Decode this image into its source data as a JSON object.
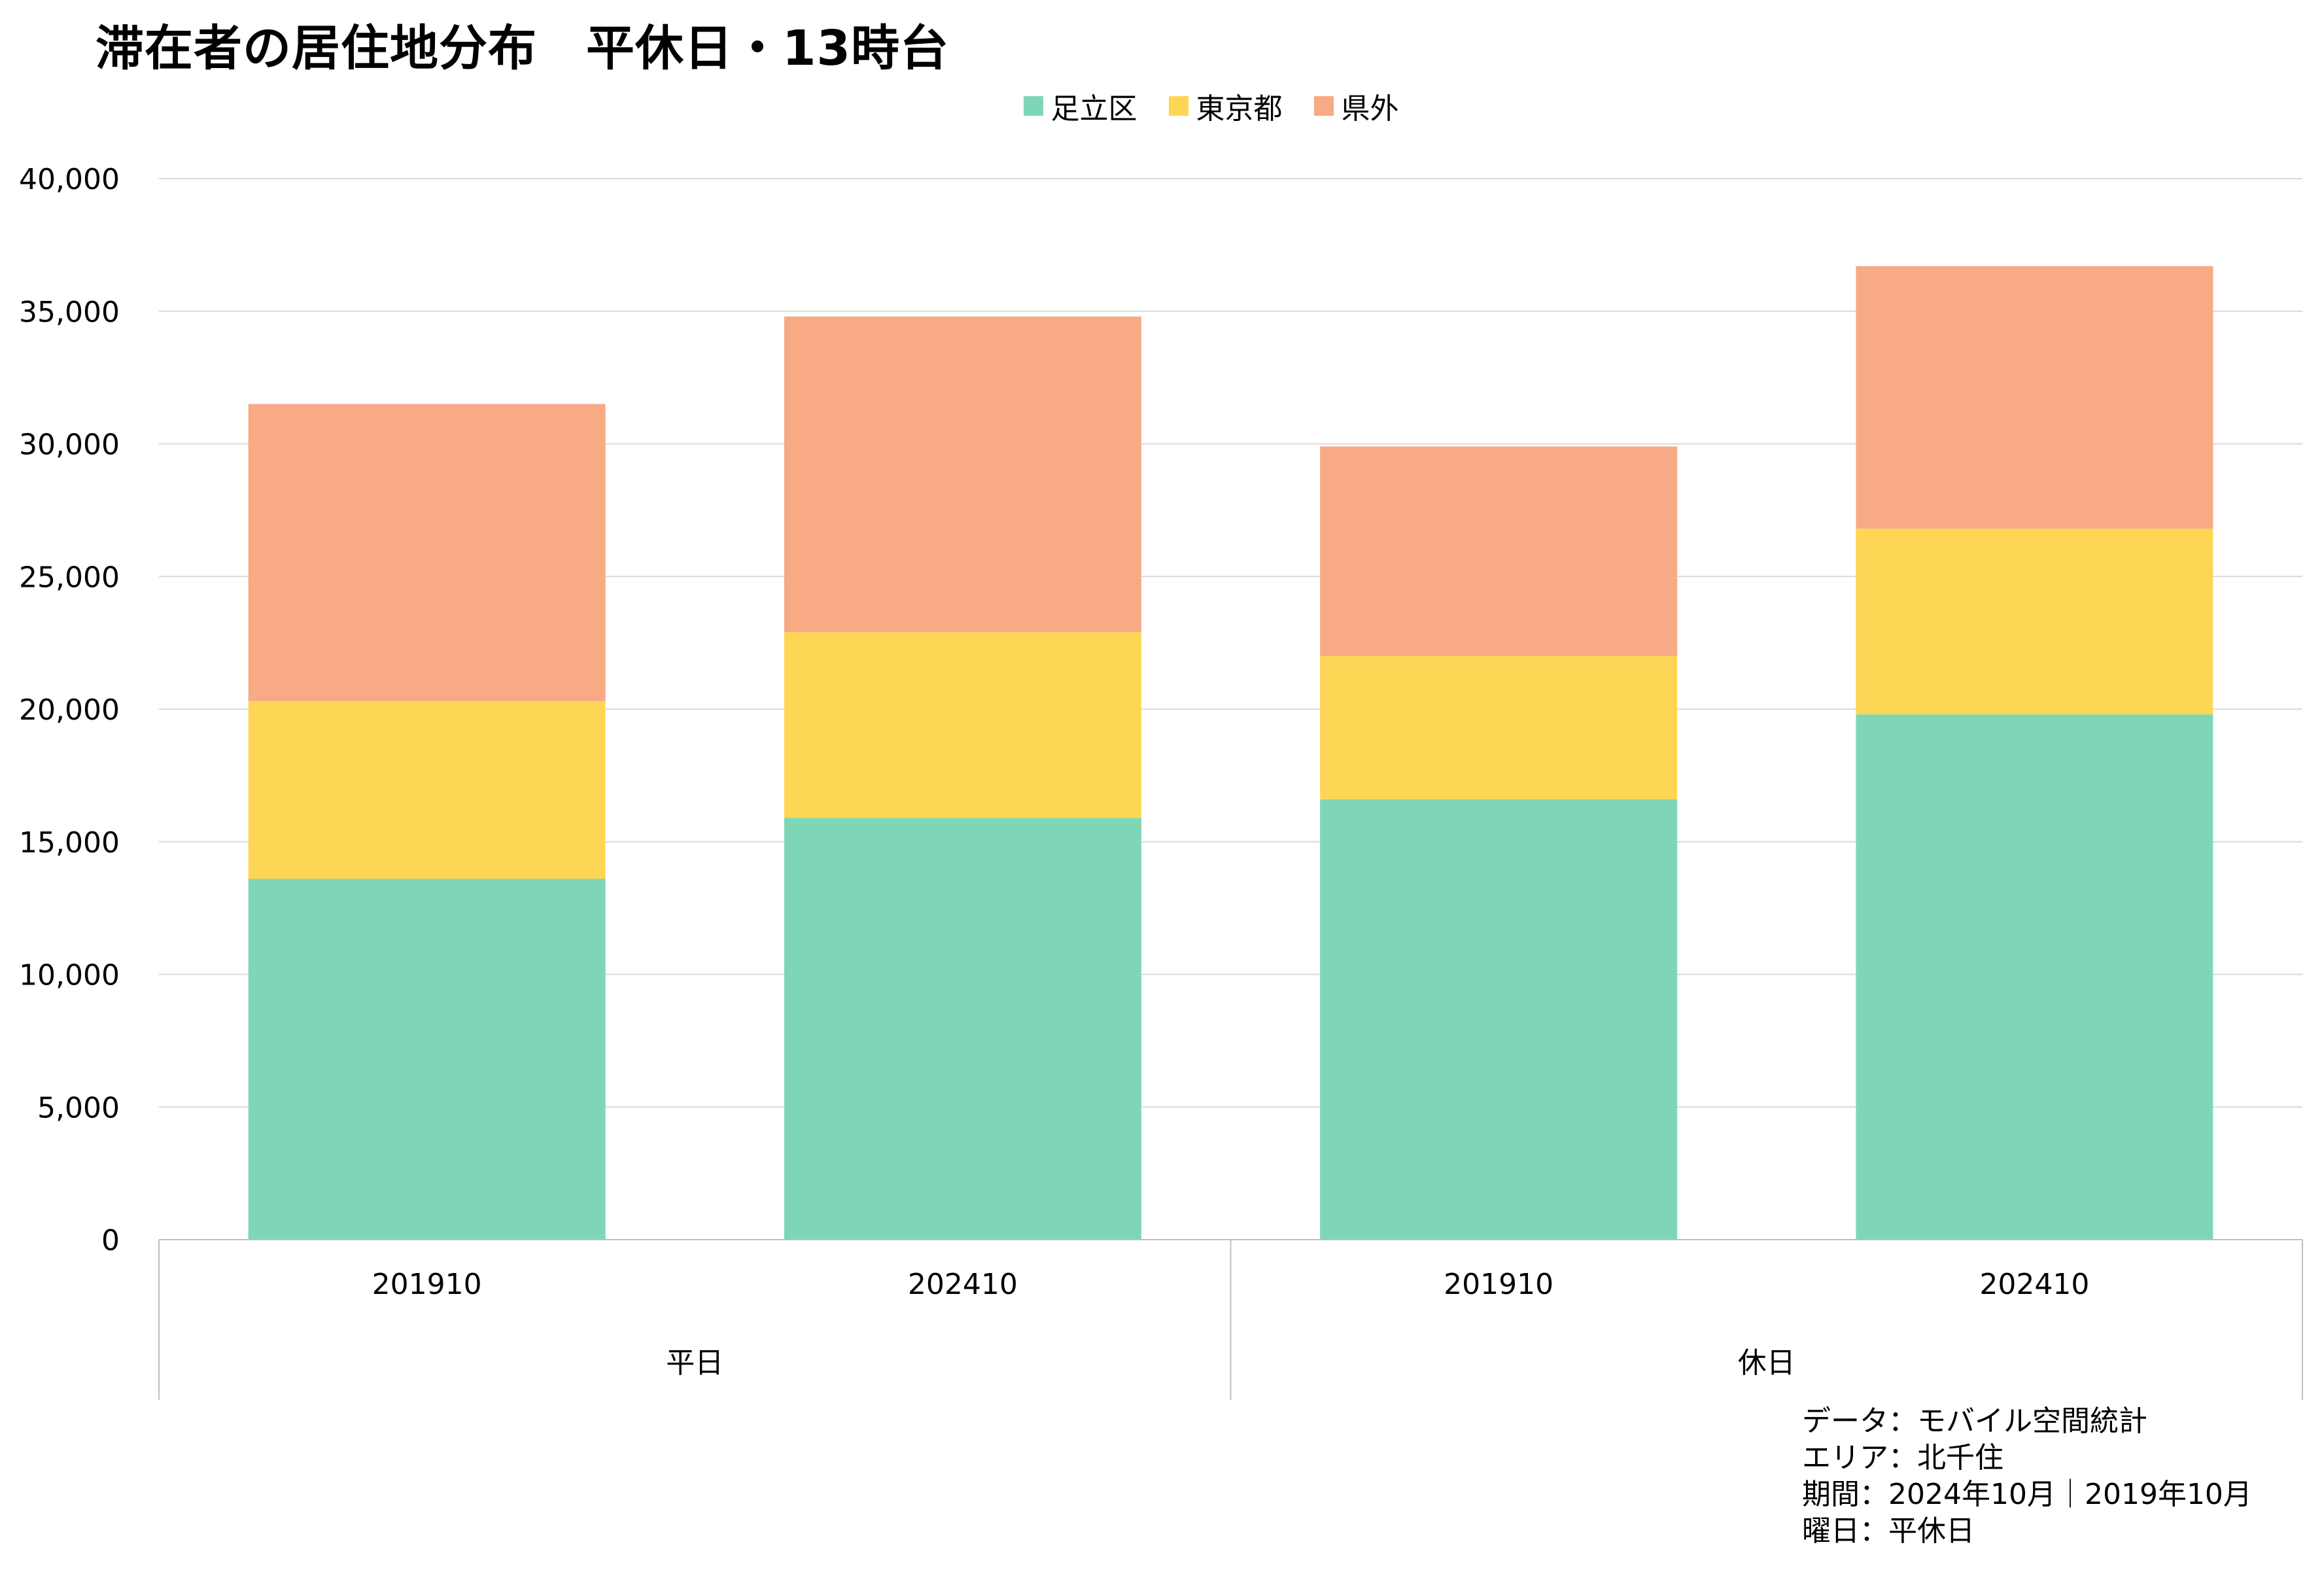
{
  "chart_data": {
    "type": "bar",
    "stacked": true,
    "title": "滞在者の居住地分布　平休日・13時台",
    "categories": [
      "201910",
      "202410",
      "201910",
      "202410"
    ],
    "groups": [
      {
        "label": "平日",
        "categories": [
          "201910",
          "202410"
        ]
      },
      {
        "label": "休日",
        "categories": [
          "201910",
          "202410"
        ]
      }
    ],
    "series": [
      {
        "name": "足立区",
        "color": "#7fd6b7",
        "values": [
          13600,
          15900,
          16600,
          19800
        ]
      },
      {
        "name": "東京都",
        "color": "#fdd655",
        "values": [
          6700,
          7000,
          5400,
          7000
        ]
      },
      {
        "name": "県外",
        "color": "#f7aa84",
        "values": [
          11200,
          11900,
          7900,
          9900
        ]
      }
    ],
    "ylim": [
      0,
      40000
    ],
    "yticks": [
      "0",
      "5,000",
      "10,000",
      "15,000",
      "20,000",
      "25,000",
      "30,000",
      "35,000",
      "40,000"
    ],
    "ytick_values": [
      0,
      5000,
      10000,
      15000,
      20000,
      25000,
      30000,
      35000,
      40000
    ],
    "grid": true,
    "legend_position": "top-center",
    "xlabel": "",
    "ylabel": ""
  },
  "notes": [
    "データ：モバイル空間統計",
    "エリア：北千住",
    "期間：2024年10月｜2019年10月",
    "曜日：平休日"
  ],
  "colors": {
    "gridline": "#d9d9d9",
    "axis": "#bfbfbf",
    "text": "#000000"
  }
}
